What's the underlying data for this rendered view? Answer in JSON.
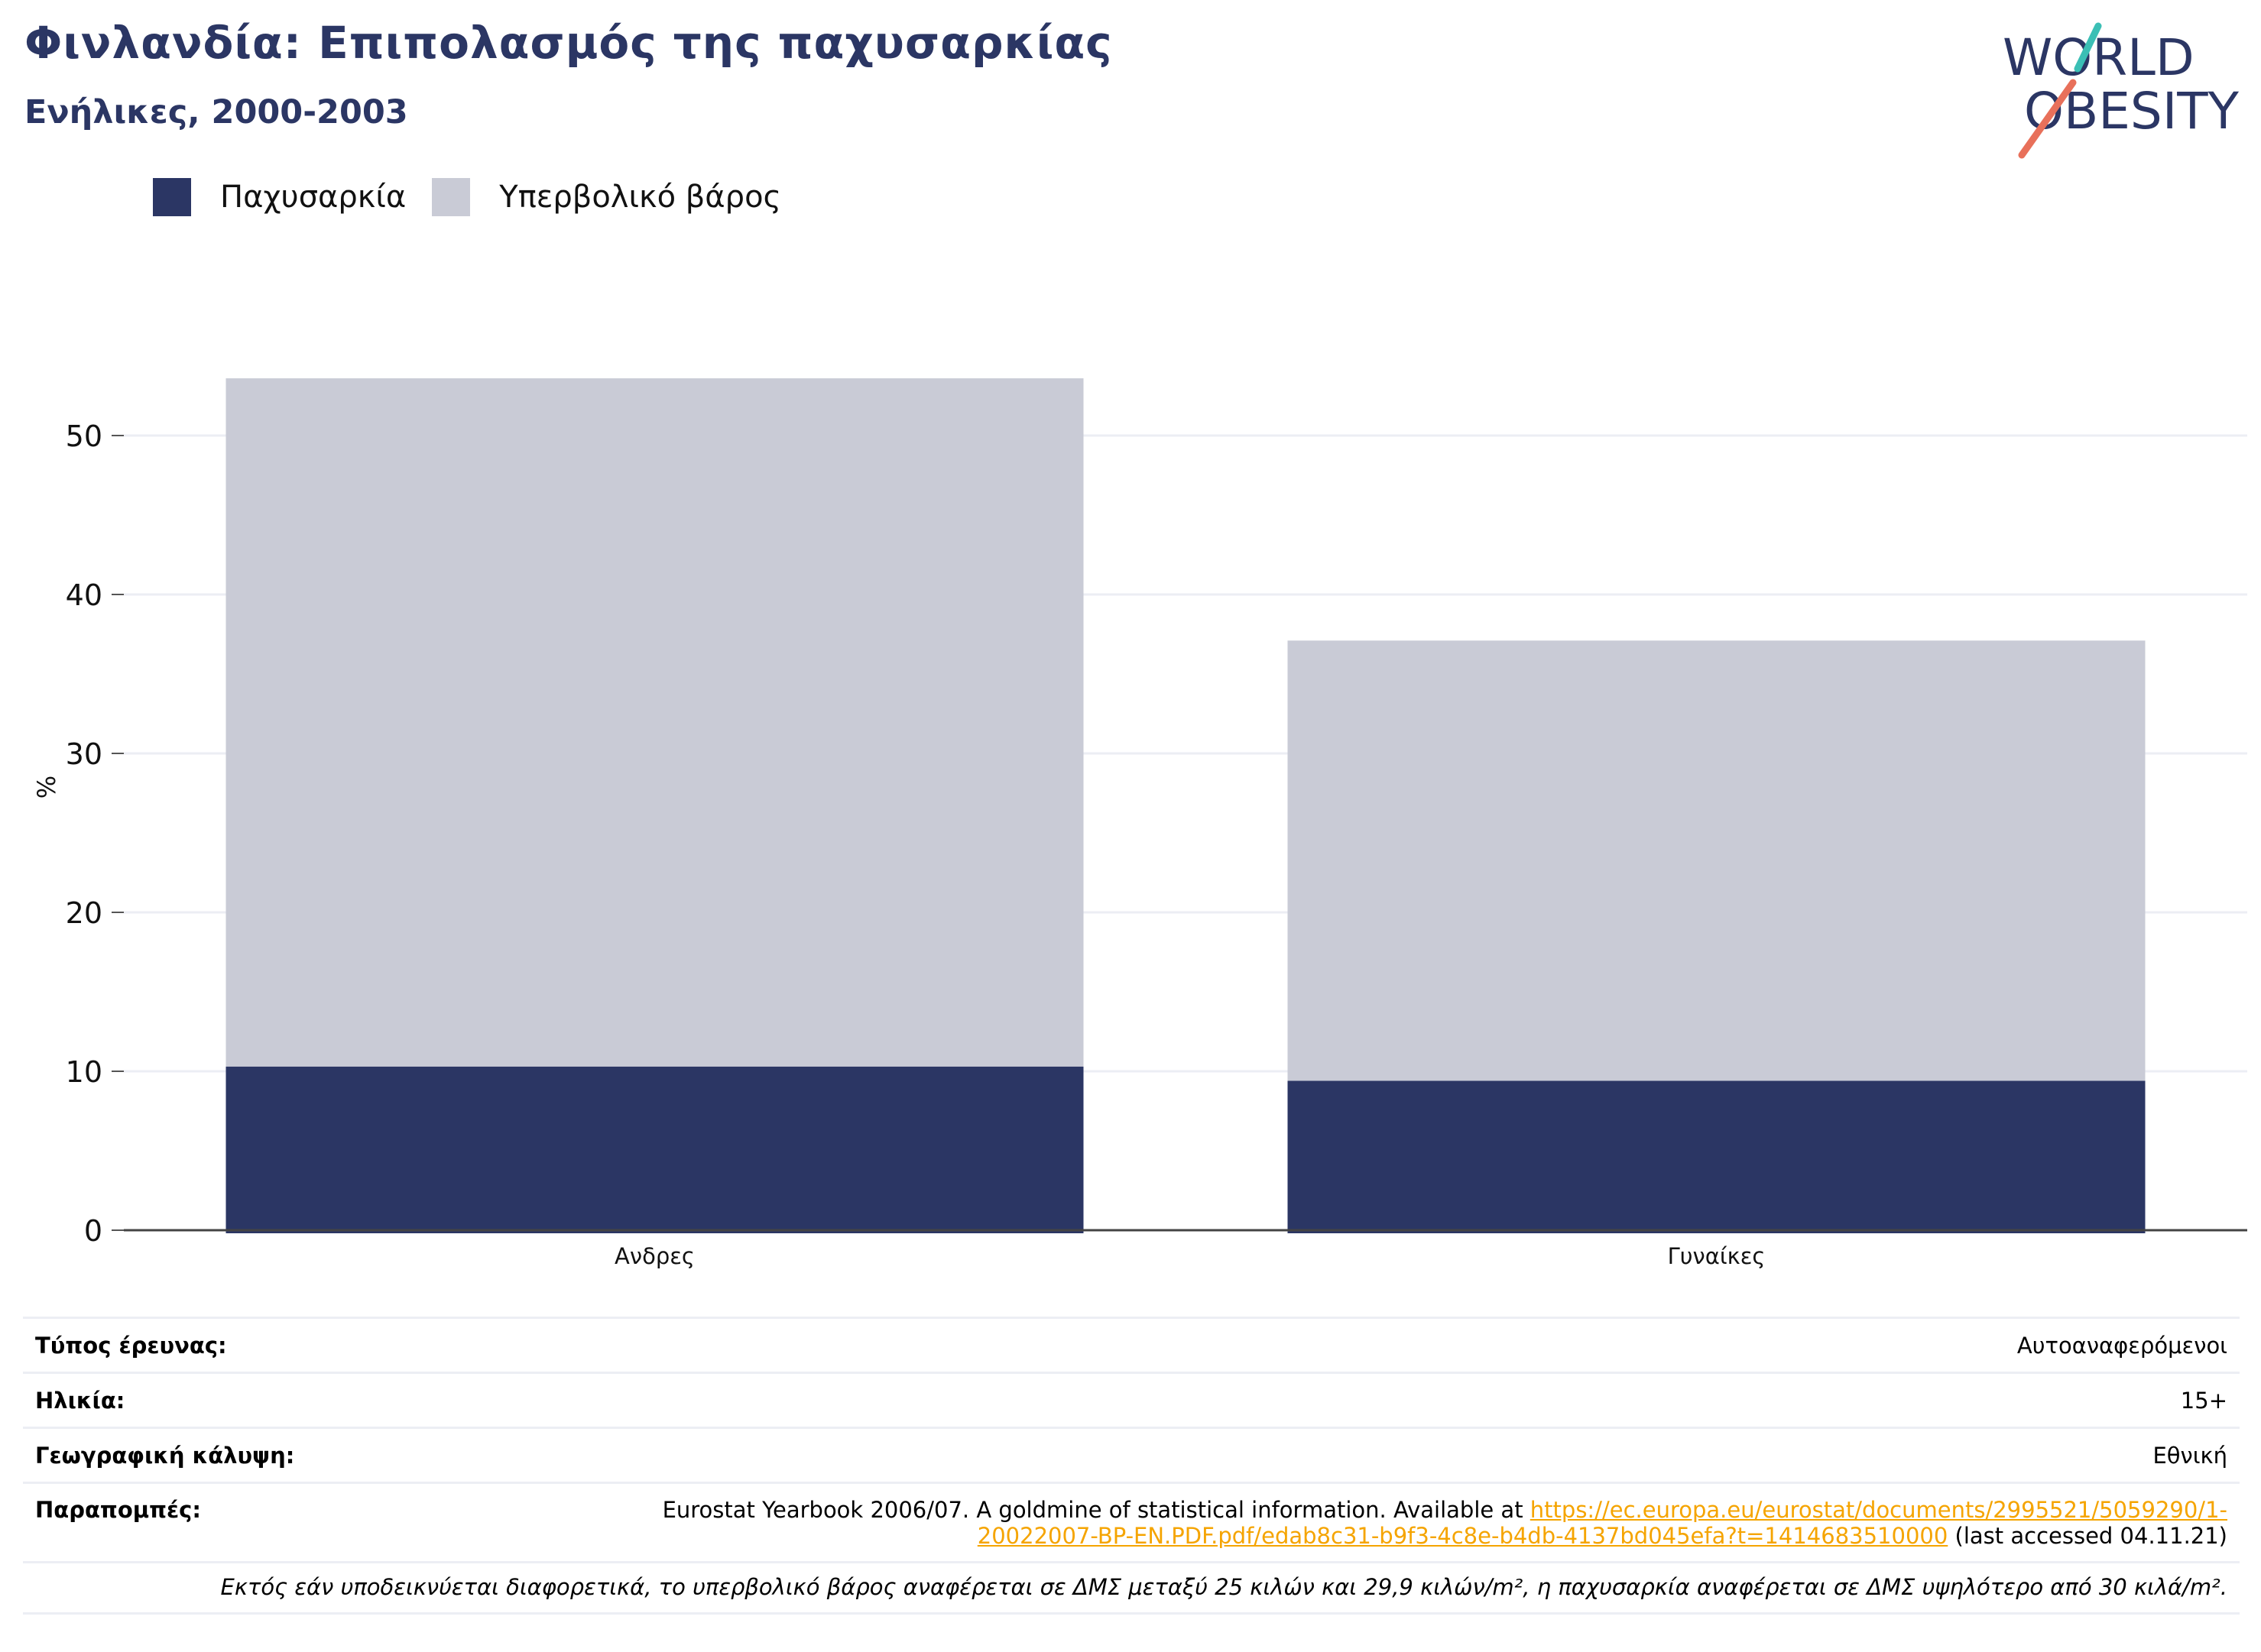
{
  "title": "Φινλανδία: Επιπολασμός της παχυσαρκίας",
  "subtitle": "Ενήλικες, 2000-2003",
  "logo": {
    "line1": "WORLD",
    "line2": "OBESITY",
    "colors": {
      "navy": "#2b3664",
      "teal": "#3bbfb5",
      "coral": "#e8705a"
    }
  },
  "legend": [
    {
      "label": "Παχυσαρκία",
      "color": "#2b3664"
    },
    {
      "label": "Υπερβολικό βάρος",
      "color": "#c9cbd6"
    }
  ],
  "chart_data": {
    "type": "bar",
    "stacked": true,
    "categories": [
      "Ανδρες",
      "Γυναίκες"
    ],
    "series": [
      {
        "name": "Παχυσαρκία",
        "values": [
          10.3,
          9.4
        ],
        "color": "#2b3664"
      },
      {
        "name": "Υπερβολικό βάρος",
        "values": [
          43.3,
          27.7
        ],
        "color": "#c9cbd6"
      }
    ],
    "ylabel": "%",
    "ylim": [
      0,
      55
    ],
    "yticks": [
      0,
      10,
      20,
      30,
      40,
      50
    ],
    "grid": true,
    "legend_position": "top-left"
  },
  "meta": {
    "survey_type": {
      "label": "Τύπος έρευνας:",
      "value": "Αυτοαναφερόμενοι"
    },
    "age": {
      "label": "Ηλικία:",
      "value": "15+"
    },
    "coverage": {
      "label": "Γεωγραφική κάλυψη:",
      "value": "Εθνική"
    },
    "references": {
      "label": "Παραπομπές:",
      "text_before": "Eurostat Yearbook 2006/07. A goldmine of statistical information. Available at ",
      "link_part1": "https://ec.europa.eu/eurostat/documents/2995521/5059290/1-",
      "link_part2": "20022007-BP-EN.PDF.pdf/edab8c31-b9f3-4c8e-b4db-4137bd045efa?t=1414683510000",
      "text_after": " (last accessed 04.11.21)"
    },
    "note": "Εκτός εάν υποδεικνύεται διαφορετικά, το υπερβολικό βάρος αναφέρεται σε ΔΜΣ μεταξύ 25 κιλών και 29,9 κιλών/m², η παχυσαρκία αναφέρεται σε ΔΜΣ υψηλότερο από 30 κιλά/m²."
  }
}
